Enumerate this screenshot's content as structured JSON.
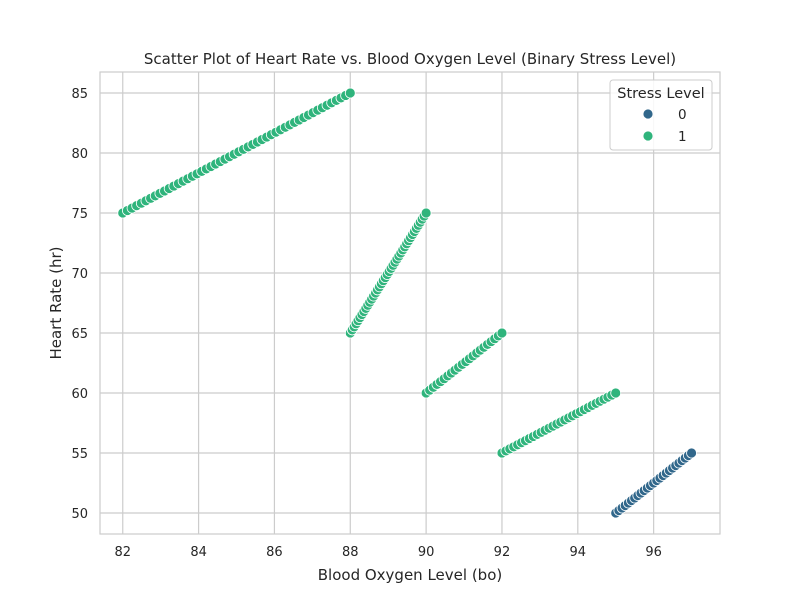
{
  "chart_data": {
    "type": "scatter",
    "title": "Scatter Plot of Heart Rate vs. Blood Oxygen Level (Binary Stress Level)",
    "xlabel": "Blood Oxygen Level (bo)",
    "ylabel": "Heart Rate (hr)",
    "xlim": [
      81.4,
      97.75
    ],
    "ylim": [
      48.25,
      86.75
    ],
    "xticks": [
      82,
      84,
      86,
      88,
      90,
      92,
      94,
      96
    ],
    "yticks": [
      50,
      55,
      60,
      65,
      70,
      75,
      80,
      85
    ],
    "grid": true,
    "legend": {
      "title": "Stress Level",
      "position": "top-right"
    },
    "series": [
      {
        "name": "0",
        "color": "#31678b",
        "segments": [
          {
            "x_start": 95,
            "y_start": 50,
            "x_end": 97,
            "y_end": 55,
            "count": 25
          }
        ]
      },
      {
        "name": "1",
        "color": "#2fb47c",
        "segments": [
          {
            "x_start": 92,
            "y_start": 55,
            "x_end": 95,
            "y_end": 60,
            "count": 30
          },
          {
            "x_start": 90,
            "y_start": 60,
            "x_end": 92,
            "y_end": 65,
            "count": 22
          },
          {
            "x_start": 88,
            "y_start": 65,
            "x_end": 90,
            "y_end": 75,
            "count": 40
          },
          {
            "x_start": 82,
            "y_start": 75,
            "x_end": 88,
            "y_end": 85,
            "count": 50
          }
        ]
      }
    ]
  }
}
